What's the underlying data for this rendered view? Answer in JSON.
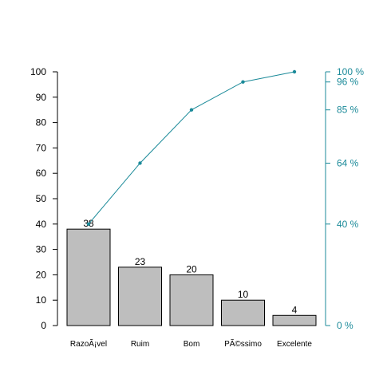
{
  "chart_data": {
    "type": "bar",
    "subtype": "pareto",
    "categories": [
      "RazoÃ¡vel",
      "Ruim",
      "Bom",
      "PÃ©ssimo",
      "Excelente"
    ],
    "values": [
      38,
      23,
      20,
      10,
      4
    ],
    "bar_labels": [
      "38",
      "23",
      "20",
      "10",
      "4"
    ],
    "cumulative_percent": [
      40,
      64,
      85,
      96,
      100
    ],
    "ylim": [
      0,
      100
    ],
    "y_ticks": [
      0,
      10,
      20,
      30,
      40,
      50,
      60,
      70,
      80,
      90,
      100
    ],
    "y_ticks_labels": [
      "0",
      "10",
      "20",
      "30",
      "40",
      "50",
      "60",
      "70",
      "80",
      "90",
      "100"
    ],
    "y2_ticks": [
      0,
      40,
      64,
      85,
      96,
      100
    ],
    "y2_ticks_labels": [
      "0 %",
      "40 %",
      "64 %",
      "85 %",
      "96 %",
      "100 %"
    ],
    "title": "",
    "xlabel": "",
    "ylabel": "",
    "grid": false,
    "colors": {
      "bar_fill": "#bebebe",
      "bar_stroke": "#000000",
      "cumulative_line": "#1b8a99",
      "axis": "#000000"
    }
  }
}
